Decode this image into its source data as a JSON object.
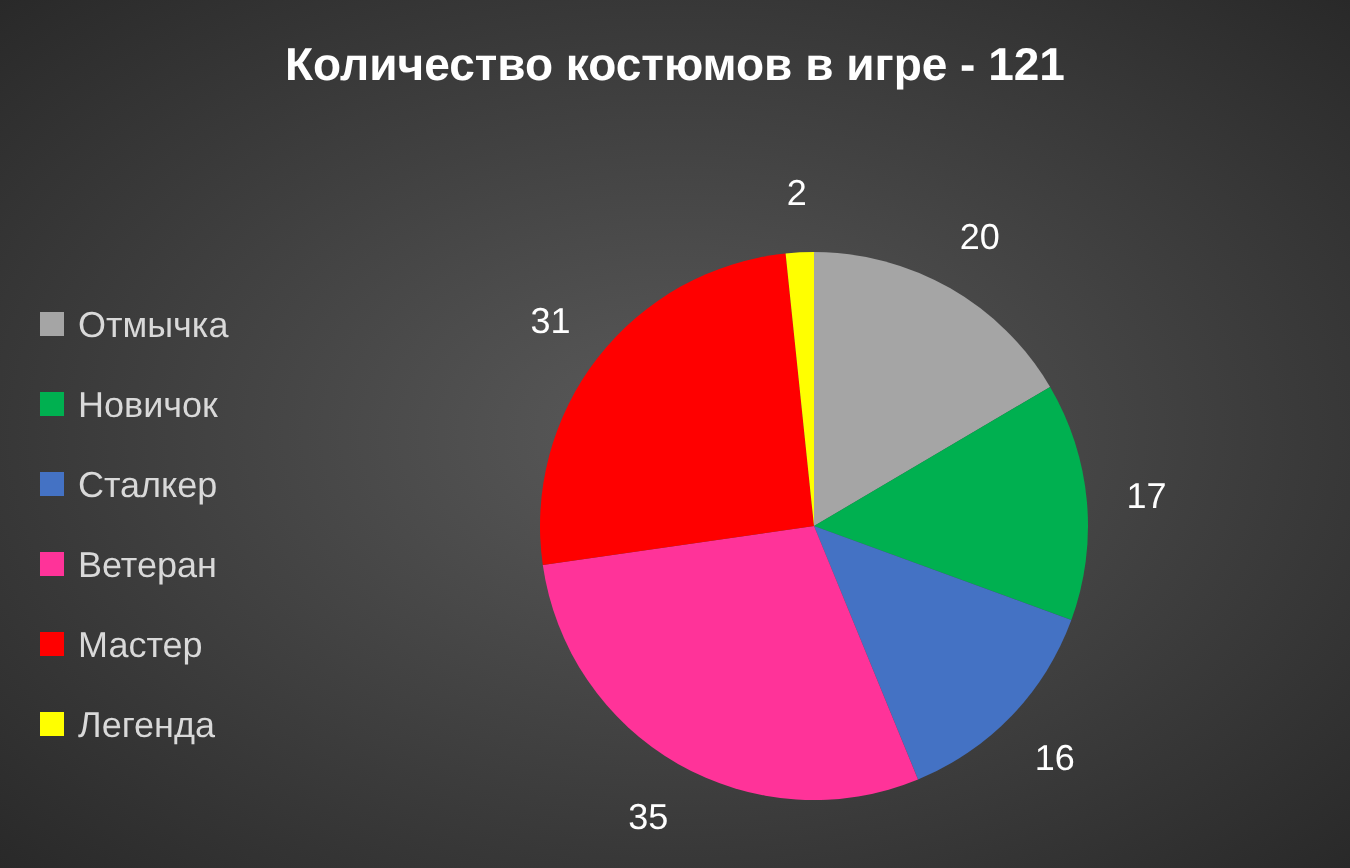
{
  "chart_data": {
    "type": "pie",
    "title": "Количество костюмов в игре - 121",
    "categories": [
      "Отмычка",
      "Новичок",
      "Сталкер",
      "Ветеран",
      "Мастер",
      "Легенда"
    ],
    "values": [
      20,
      17,
      16,
      35,
      31,
      2
    ],
    "colors": [
      "#a5a5a5",
      "#00b050",
      "#4472c4",
      "#ff3399",
      "#ff0000",
      "#ffff00"
    ],
    "data_labels": true,
    "legend": "left"
  }
}
